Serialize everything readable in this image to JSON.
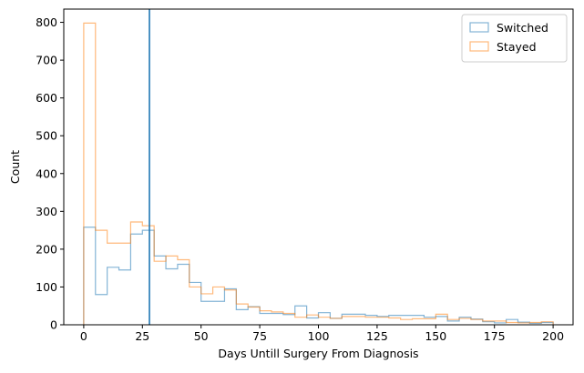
{
  "chart_data": {
    "type": "histogram-step",
    "xlabel": "Days Untill Surgery From Diagnosis",
    "ylabel": "Count",
    "xlim": [
      -8.5,
      208.5
    ],
    "ylim": [
      0,
      835
    ],
    "xticks": [
      0,
      25,
      50,
      75,
      100,
      125,
      150,
      175,
      200
    ],
    "yticks": [
      0,
      100,
      200,
      300,
      400,
      500,
      600,
      700,
      800
    ],
    "bin_edges": [
      0,
      5,
      10,
      15,
      20,
      25,
      30,
      35,
      40,
      45,
      50,
      55,
      60,
      65,
      70,
      75,
      80,
      85,
      90,
      95,
      100,
      105,
      110,
      115,
      120,
      125,
      130,
      135,
      140,
      145,
      150,
      155,
      160,
      165,
      170,
      175,
      180,
      185,
      190,
      195,
      200
    ],
    "series": [
      {
        "name": "Switched",
        "color": "#1f77b4",
        "values": [
          258,
          80,
          152,
          145,
          240,
          250,
          182,
          148,
          160,
          112,
          62,
          62,
          95,
          40,
          48,
          30,
          30,
          27,
          50,
          18,
          32,
          17,
          28,
          28,
          25,
          22,
          25,
          25,
          25,
          20,
          22,
          10,
          20,
          15,
          8,
          5,
          14,
          7,
          4,
          6
        ]
      },
      {
        "name": "Stayed",
        "color": "#ff7f0e",
        "values": [
          798,
          250,
          216,
          216,
          272,
          262,
          168,
          182,
          172,
          100,
          82,
          100,
          92,
          55,
          47,
          37,
          34,
          30,
          20,
          26,
          20,
          17,
          22,
          22,
          20,
          20,
          18,
          14,
          16,
          16,
          28,
          14,
          17,
          14,
          10,
          10,
          6,
          5,
          6,
          8
        ]
      }
    ],
    "vline": {
      "x": 28,
      "color": "#1f77b4"
    },
    "legend_position": "top-right",
    "grid": false
  }
}
